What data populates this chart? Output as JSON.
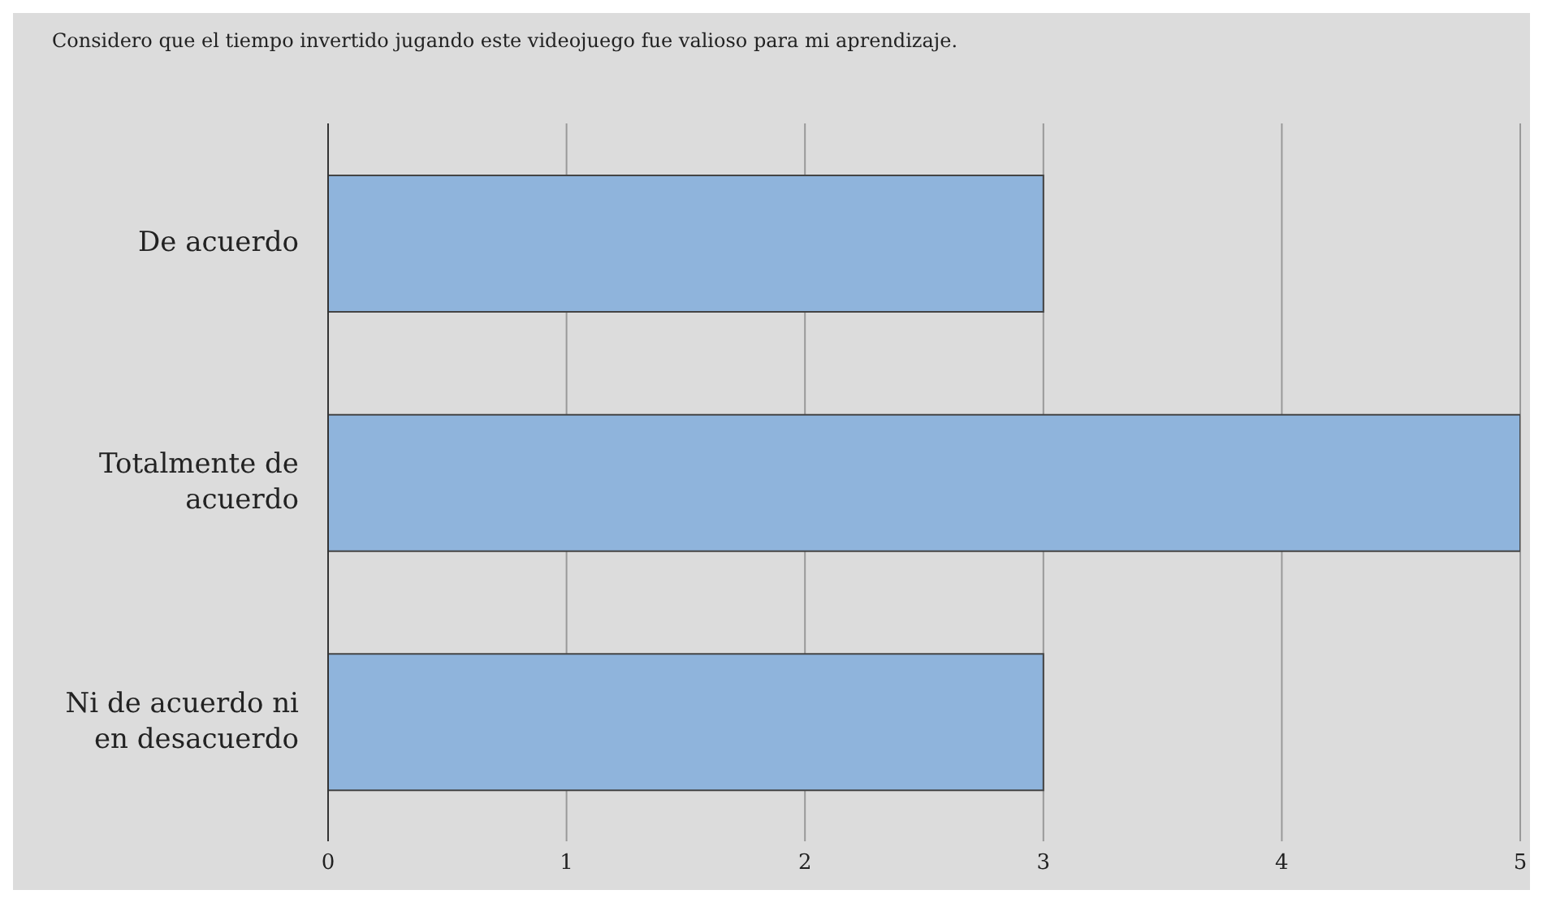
{
  "chart_data": {
    "type": "bar",
    "orientation": "horizontal",
    "title": "Considero que el tiempo invertido jugando este videojuego fue valioso para mi aprendizaje.",
    "categories": [
      "De acuerdo",
      "Totalmente de acuerdo",
      "Ni de acuerdo ni en desacuerdo"
    ],
    "values": [
      3,
      5,
      3
    ],
    "color": "#8fb4dc",
    "xlim": [
      0,
      5
    ],
    "xticks": [
      0,
      1,
      2,
      3,
      4,
      5
    ],
    "grid": "x",
    "legend": false
  }
}
